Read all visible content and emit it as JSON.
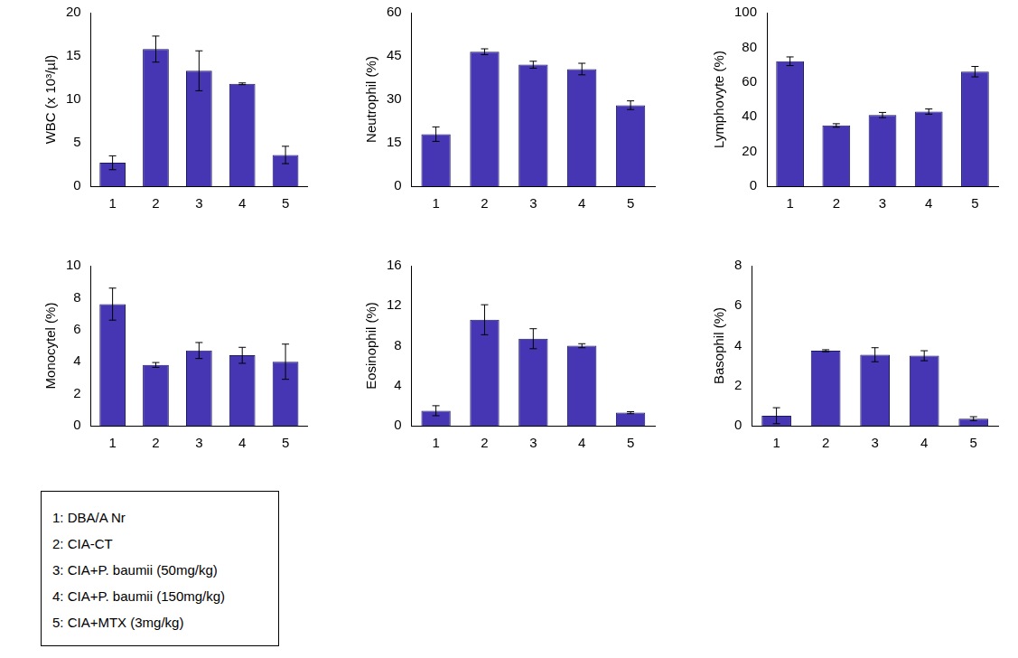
{
  "chart_data": [
    {
      "type": "bar",
      "y_label": "WBC (x 10³/µl)",
      "categories": [
        "1",
        "2",
        "3",
        "4",
        "5"
      ],
      "values": [
        2.7,
        15.8,
        13.3,
        11.8,
        3.6
      ],
      "errors": [
        0.8,
        1.5,
        2.3,
        0.1,
        1.0
      ],
      "color": "#4636b4",
      "ylim": [
        0,
        20
      ],
      "yticks": [
        0,
        5,
        10,
        15,
        20
      ],
      "grid": false
    },
    {
      "type": "bar",
      "y_label": "Neutrophil (%)",
      "categories": [
        "1",
        "2",
        "3",
        "4",
        "5"
      ],
      "values": [
        18,
        46.5,
        42,
        40.5,
        28
      ],
      "errors": [
        2.5,
        1,
        1.2,
        2,
        1.5
      ],
      "color": "#4636b4",
      "ylim": [
        0,
        60
      ],
      "yticks": [
        0,
        15,
        30,
        45,
        60
      ],
      "grid": false
    },
    {
      "type": "bar",
      "y_label": "Lymphovyte (%)",
      "categories": [
        "1",
        "2",
        "3",
        "4",
        "5"
      ],
      "values": [
        72,
        35,
        41,
        43,
        66
      ],
      "errors": [
        2.5,
        1,
        1.5,
        1.5,
        3
      ],
      "color": "#4636b4",
      "ylim": [
        0,
        100
      ],
      "yticks": [
        0,
        20,
        40,
        60,
        80,
        100
      ],
      "grid": false
    },
    {
      "type": "bar",
      "y_label": "Monocytel (%)",
      "categories": [
        "1",
        "2",
        "3",
        "4",
        "5"
      ],
      "values": [
        7.6,
        3.8,
        4.7,
        4.4,
        4.0
      ],
      "errors": [
        1.0,
        0.15,
        0.5,
        0.5,
        1.1
      ],
      "color": "#4636b4",
      "ylim": [
        0,
        10
      ],
      "yticks": [
        0,
        2,
        4,
        6,
        8,
        10
      ],
      "grid": false
    },
    {
      "type": "bar",
      "y_label": "Eosinophil (%)",
      "categories": [
        "1",
        "2",
        "3",
        "4",
        "5"
      ],
      "values": [
        1.5,
        10.6,
        8.7,
        8.0,
        1.3
      ],
      "errors": [
        0.5,
        1.5,
        1.0,
        0.2,
        0.1
      ],
      "color": "#4636b4",
      "ylim": [
        0,
        16
      ],
      "yticks": [
        0,
        4,
        8,
        12,
        16
      ],
      "grid": false
    },
    {
      "type": "bar",
      "y_label": "Basophil (%)",
      "categories": [
        "1",
        "2",
        "3",
        "4",
        "5"
      ],
      "values": [
        0.5,
        3.75,
        3.55,
        3.5,
        0.35
      ],
      "errors": [
        0.4,
        0.05,
        0.35,
        0.25,
        0.1
      ],
      "color": "#4636b4",
      "ylim": [
        0,
        8
      ],
      "yticks": [
        0,
        2,
        4,
        6,
        8
      ],
      "grid": false
    }
  ],
  "key": [
    "1: DBA/A Nr",
    "2: CIA-CT",
    "3: CIA+P. baumii (50mg/kg)",
    "4: CIA+P. baumii (150mg/kg)",
    "5: CIA+MTX (3mg/kg)"
  ]
}
